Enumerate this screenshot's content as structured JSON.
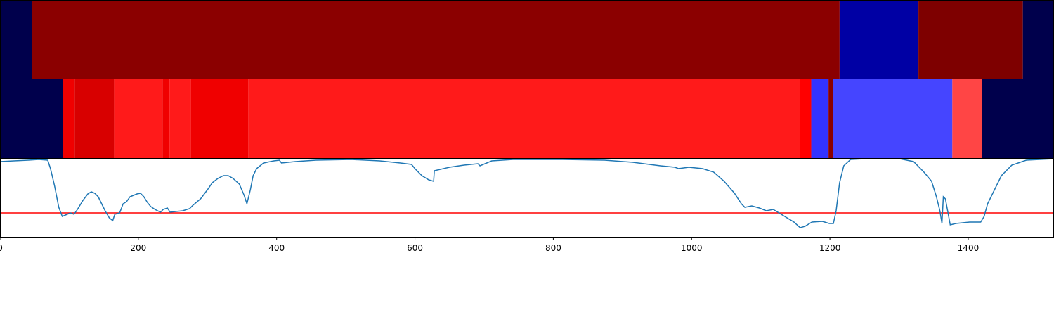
{
  "chart_data": [
    {
      "type": "strip",
      "xlim": [
        0,
        1524
      ],
      "edges": [
        0,
        46,
        1214,
        1328,
        1479,
        1524
      ],
      "colors": [
        "#00004c",
        "#8b0000",
        "#0000a4",
        "#7e0000",
        "#00004c"
      ]
    },
    {
      "type": "strip",
      "xlim": [
        0,
        1524
      ],
      "edges": [
        0,
        91,
        108,
        165,
        235,
        245,
        276,
        359,
        1157,
        1173,
        1198,
        1204,
        1377,
        1420,
        1524
      ],
      "colors": [
        "#00004c",
        "#f00000",
        "#d80000",
        "#ff1a1a",
        "#f00000",
        "#ff1a1a",
        "#f00000",
        "#ff1a1a",
        "#ff0000",
        "#3333ff",
        "#8b0000",
        "#4545ff",
        "#ff4545",
        "#00004c"
      ]
    },
    {
      "type": "line",
      "color": "#1f77b4",
      "xlim": [
        0,
        1524
      ],
      "ylim": [
        0,
        112
      ],
      "xticks": [
        0,
        200,
        400,
        600,
        800,
        1000,
        1200,
        1400
      ],
      "hline": {
        "value": 35,
        "color": "#ff0000"
      },
      "x": [
        0,
        20,
        41,
        56,
        69,
        73,
        79,
        85,
        90,
        97,
        102,
        107,
        112,
        120,
        127,
        132,
        137,
        142,
        147,
        152,
        158,
        163,
        166,
        173,
        178,
        183,
        188,
        193,
        198,
        203,
        208,
        213,
        218,
        224,
        232,
        236,
        242,
        246,
        254,
        264,
        274,
        279,
        290,
        300,
        307,
        315,
        323,
        330,
        337,
        346,
        353,
        357,
        362,
        366,
        371,
        381,
        396,
        404,
        407,
        427,
        457,
        508,
        549,
        579,
        595,
        600,
        610,
        620,
        627,
        628,
        650,
        671,
        691,
        694,
        711,
        742,
        813,
        874,
        915,
        955,
        976,
        981,
        996,
        1016,
        1032,
        1047,
        1062,
        1072,
        1077,
        1087,
        1098,
        1108,
        1118,
        1128,
        1138,
        1148,
        1157,
        1164,
        1174,
        1189,
        1199,
        1205,
        1209,
        1214,
        1220,
        1230,
        1250,
        1301,
        1321,
        1336,
        1347,
        1354,
        1359,
        1362,
        1364,
        1367,
        1374,
        1382,
        1402,
        1418,
        1423,
        1428,
        1438,
        1448,
        1463,
        1484,
        1524
      ],
      "values": [
        108,
        109,
        110,
        111,
        110,
        98,
        73,
        43,
        30,
        33,
        35,
        33,
        40,
        53,
        62,
        65,
        63,
        58,
        48,
        38,
        28,
        24,
        33,
        35,
        48,
        51,
        58,
        60,
        62,
        63,
        58,
        50,
        44,
        40,
        36,
        40,
        42,
        36,
        37,
        38,
        41,
        46,
        55,
        68,
        78,
        84,
        88,
        88,
        84,
        76,
        60,
        48,
        68,
        88,
        98,
        106,
        109,
        110,
        106,
        108,
        110,
        111,
        109,
        106,
        104,
        98,
        88,
        82,
        80,
        95,
        100,
        103,
        105,
        102,
        109,
        111,
        111,
        110,
        107,
        102,
        100,
        98,
        100,
        98,
        93,
        80,
        63,
        48,
        43,
        45,
        42,
        38,
        40,
        34,
        28,
        22,
        14,
        16,
        22,
        23,
        20,
        20,
        38,
        78,
        102,
        111,
        112,
        112,
        108,
        93,
        80,
        58,
        38,
        20,
        58,
        55,
        18,
        20,
        22,
        22,
        30,
        48,
        68,
        88,
        103,
        110,
        112
      ]
    }
  ]
}
